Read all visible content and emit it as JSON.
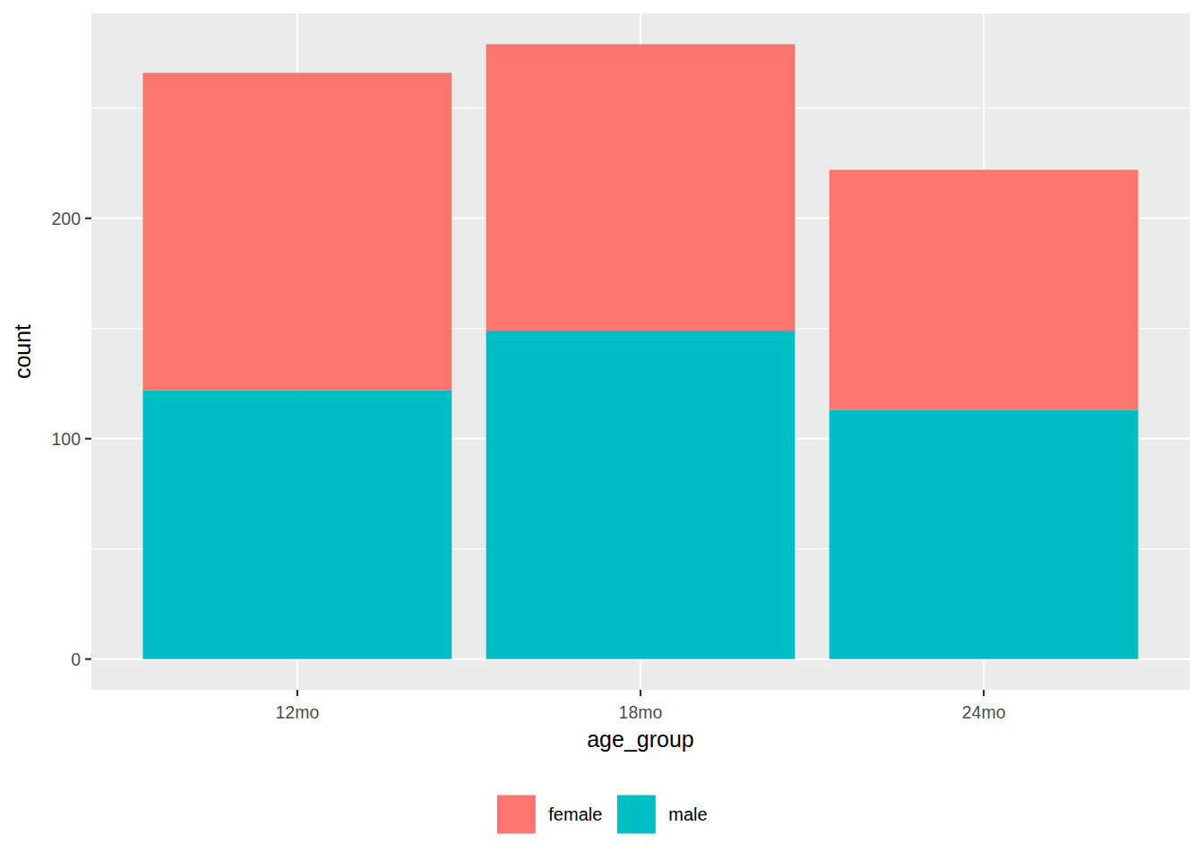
{
  "chart_data": {
    "type": "bar",
    "stacked": true,
    "x_label": "age_group",
    "y_label": "count",
    "categories": [
      "12mo",
      "18mo",
      "24mo"
    ],
    "series": [
      {
        "name": "female",
        "color": "#F8766D",
        "values": [
          144,
          130,
          109
        ]
      },
      {
        "name": "male",
        "color": "#00BFC4",
        "values": [
          122,
          149,
          113
        ]
      }
    ],
    "ylim": [
      -13.95,
      292.95
    ],
    "yticks": [
      0,
      100,
      200
    ],
    "grid": true,
    "legend": "bottom"
  }
}
